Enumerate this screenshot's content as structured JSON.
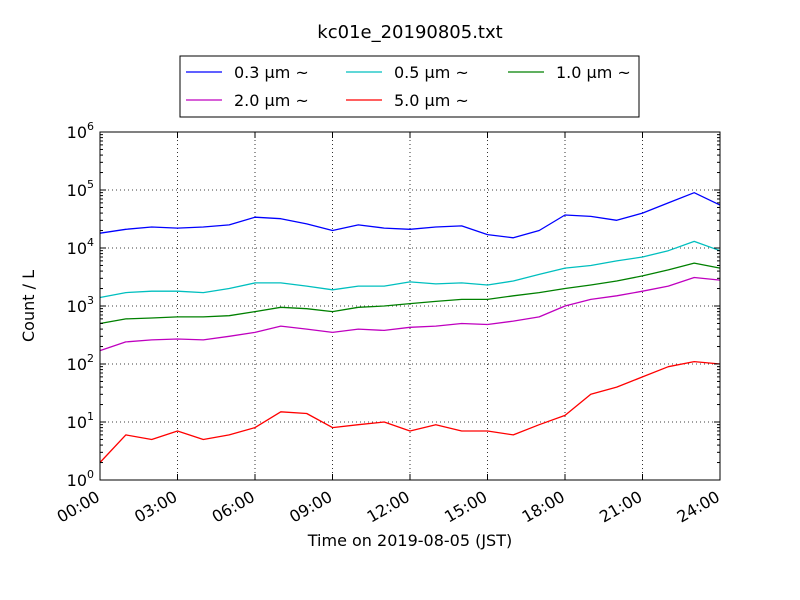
{
  "chart_data": {
    "type": "line",
    "title": "kc01e_20190805.txt",
    "xlabel": "Time on 2019-08-05 (JST)",
    "ylabel": "Count / L",
    "yscale": "log",
    "ylim": [
      1,
      1000000
    ],
    "xlim": [
      "00:00",
      "24:00"
    ],
    "grid": true,
    "legend_position": "top-center",
    "x_ticks": [
      "00:00",
      "03:00",
      "06:00",
      "09:00",
      "12:00",
      "15:00",
      "18:00",
      "21:00",
      "24:00"
    ],
    "y_ticks": [
      {
        "base": "10",
        "exp": "0"
      },
      {
        "base": "10",
        "exp": "1"
      },
      {
        "base": "10",
        "exp": "2"
      },
      {
        "base": "10",
        "exp": "3"
      },
      {
        "base": "10",
        "exp": "4"
      },
      {
        "base": "10",
        "exp": "5"
      },
      {
        "base": "10",
        "exp": "6"
      }
    ],
    "x": [
      "00:00",
      "01:00",
      "02:00",
      "03:00",
      "04:00",
      "05:00",
      "06:00",
      "07:00",
      "08:00",
      "09:00",
      "10:00",
      "11:00",
      "12:00",
      "13:00",
      "14:00",
      "15:00",
      "16:00",
      "17:00",
      "18:00",
      "19:00",
      "20:00",
      "21:00",
      "22:00",
      "23:00",
      "24:00"
    ],
    "series": [
      {
        "name": "0.3 µm ~",
        "color": "#0000ff",
        "values": [
          18000,
          21000,
          23000,
          22000,
          23000,
          25000,
          34000,
          32000,
          26000,
          20000,
          25000,
          22000,
          21000,
          23000,
          24000,
          17000,
          15000,
          20000,
          37000,
          35000,
          30000,
          40000,
          60000,
          90000,
          55000
        ]
      },
      {
        "name": "0.5 µm ~",
        "color": "#00bfbf",
        "values": [
          1400,
          1700,
          1800,
          1800,
          1700,
          2000,
          2500,
          2500,
          2200,
          1900,
          2200,
          2200,
          2600,
          2400,
          2500,
          2300,
          2700,
          3500,
          4500,
          5000,
          6000,
          7000,
          9000,
          13000,
          9000
        ]
      },
      {
        "name": "1.0 µm ~",
        "color": "#008000",
        "values": [
          500,
          600,
          620,
          650,
          650,
          680,
          800,
          950,
          900,
          800,
          950,
          1000,
          1100,
          1200,
          1300,
          1300,
          1500,
          1700,
          2000,
          2300,
          2700,
          3300,
          4200,
          5500,
          4500
        ]
      },
      {
        "name": "2.0 µm ~",
        "color": "#bf00bf",
        "values": [
          170,
          240,
          260,
          270,
          260,
          300,
          350,
          450,
          400,
          350,
          400,
          380,
          430,
          450,
          500,
          480,
          550,
          650,
          1000,
          1300,
          1500,
          1800,
          2200,
          3100,
          2800
        ]
      },
      {
        "name": "5.0 µm ~",
        "color": "#ff0000",
        "values": [
          2,
          6,
          5,
          7,
          5,
          6,
          8,
          15,
          14,
          8,
          9,
          10,
          7,
          9,
          7,
          7,
          6,
          9,
          13,
          30,
          40,
          60,
          90,
          110,
          100
        ]
      }
    ]
  }
}
